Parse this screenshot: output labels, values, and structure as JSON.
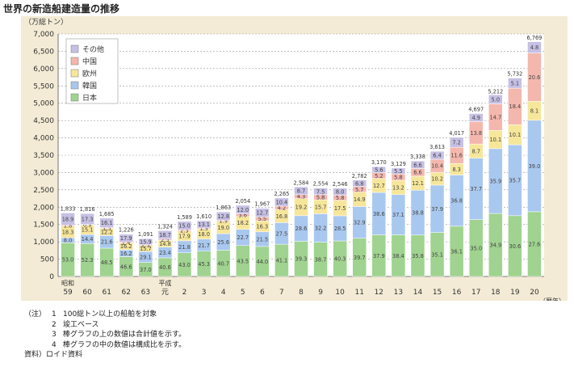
{
  "title": "世界の新造船建造量の推移",
  "chart_data": {
    "type": "bar",
    "stacked": true,
    "unit_label": "（万総トン）",
    "x_unit_label": "（暦年）",
    "ylim": [
      0,
      7000
    ],
    "yticks": [
      "0",
      "500",
      "1,000",
      "1,500",
      "2,000",
      "2,500",
      "3,000",
      "3,500",
      "4,000",
      "4,500",
      "5,000",
      "5,500",
      "6,000",
      "6,500",
      "7,000"
    ],
    "grid": true,
    "legend_position": "top-left",
    "categories": [
      [
        "昭和",
        "59"
      ],
      [
        "",
        "60"
      ],
      [
        "",
        "61"
      ],
      [
        "",
        "62"
      ],
      [
        "",
        "63"
      ],
      [
        "平成",
        "元"
      ],
      [
        "",
        "2"
      ],
      [
        "",
        "3"
      ],
      [
        "",
        "4"
      ],
      [
        "",
        "5"
      ],
      [
        "",
        "6"
      ],
      [
        "",
        "7"
      ],
      [
        "",
        "8"
      ],
      [
        "",
        "9"
      ],
      [
        "",
        "10"
      ],
      [
        "",
        "11"
      ],
      [
        "",
        "12"
      ],
      [
        "",
        "13"
      ],
      [
        "",
        "14"
      ],
      [
        "",
        "15"
      ],
      [
        "",
        "16"
      ],
      [
        "",
        "17"
      ],
      [
        "",
        "18"
      ],
      [
        "",
        "19"
      ],
      [
        "",
        "20"
      ]
    ],
    "totals": [
      1833,
      1816,
      1685,
      1226,
      1091,
      1324,
      1589,
      1610,
      1863,
      2054,
      1967,
      2265,
      2584,
      2554,
      2546,
      2782,
      3170,
      3129,
      3338,
      3613,
      4017,
      4697,
      5212,
      5732,
      6769
    ],
    "total_labels": [
      "1,833",
      "1,816",
      "1,685",
      "1,226",
      "1,091",
      "1,324",
      "1,589",
      "1,610",
      "1,863",
      "2,054",
      "1,967",
      "2,265",
      "2,584",
      "2,554",
      "2,546",
      "2,782",
      "3,170",
      "3,129",
      "3,338",
      "3,613",
      "4,017",
      "4,697",
      "5,212",
      "5,732",
      "6,769"
    ],
    "series": [
      {
        "name": "日本",
        "color": "#9fd38f",
        "values": [
          "53.0",
          "52.3",
          "48.5",
          "46.6",
          "37.0",
          "40.6",
          "43.0",
          "45.3",
          "40.7",
          "43.5",
          "44.0",
          "41.1",
          "39.3",
          "38.7",
          "40.3",
          "39.7",
          "37.9",
          "38.4",
          "35.8",
          "35.1",
          "36.1",
          "35.0",
          "34.9",
          "30.6",
          "27.6"
        ]
      },
      {
        "name": "韓国",
        "color": "#a9c8ef",
        "values": [
          "8.0",
          "14.4",
          "21.6",
          "16.2",
          "29.1",
          "23.4",
          "21.8",
          "21.7",
          "25.6",
          "22.7",
          "21.5",
          "27.5",
          "28.6",
          "32.2",
          "28.5",
          "32.9",
          "38.6",
          "37.1",
          "38.8",
          "37.9",
          "36.8",
          "37.7",
          "35.9",
          "35.7",
          "39.0"
        ]
      },
      {
        "name": "欧州",
        "color": "#f6e69a",
        "values": [
          "18.3",
          "15.1",
          "12.2",
          "16.2",
          "15.7",
          "14.8",
          "17.9",
          "18.0",
          "19.0",
          "18.2",
          "16.3",
          "16.8",
          "19.2",
          "15.7",
          "17.5",
          "14.9",
          "12.7",
          "13.2",
          "12.1",
          "10.2",
          "8.3",
          "8.7",
          "10.1",
          "10.1",
          "8.1"
        ]
      },
      {
        "name": "中国",
        "color": "#f4b7ad",
        "values": [
          "1.8",
          "0.9",
          "1.5",
          "2.4",
          "2.3",
          "2.5",
          "2.3",
          "1.9",
          "1.9",
          "3.6",
          "5.5",
          "4.2",
          "4.3",
          "5.8",
          "5.8",
          "5.7",
          "5.2",
          "5.8",
          "6.6",
          "10.4",
          "11.6",
          "13.8",
          "14.7",
          "18.4",
          "20.6"
        ]
      },
      {
        "name": "その他",
        "color": "#c6c0e4",
        "values": [
          "18.9",
          "17.3",
          "16.1",
          "17.9",
          "15.9",
          "18.7",
          "15.0",
          "13.1",
          "12.8",
          "12.0",
          "12.7",
          "10.4",
          "8.7",
          "7.5",
          "8.0",
          "6.8",
          "5.6",
          "5.5",
          "6.6",
          "6.4",
          "7.2",
          "4.9",
          "5.0",
          "5.1",
          "4.8"
        ]
      }
    ]
  },
  "notes": {
    "note_label": "（注）",
    "items": [
      {
        "num": "1",
        "text": "100総トン以上の船舶を対象"
      },
      {
        "num": "2",
        "text": "竣工ベース"
      },
      {
        "num": "3",
        "text": "棒グラフの上の数値は合計値を示す。"
      },
      {
        "num": "4",
        "text": "棒グラフの中の数値は構成比を示す。"
      }
    ],
    "source_label": "資料）",
    "source_text": "ロイド資料"
  }
}
